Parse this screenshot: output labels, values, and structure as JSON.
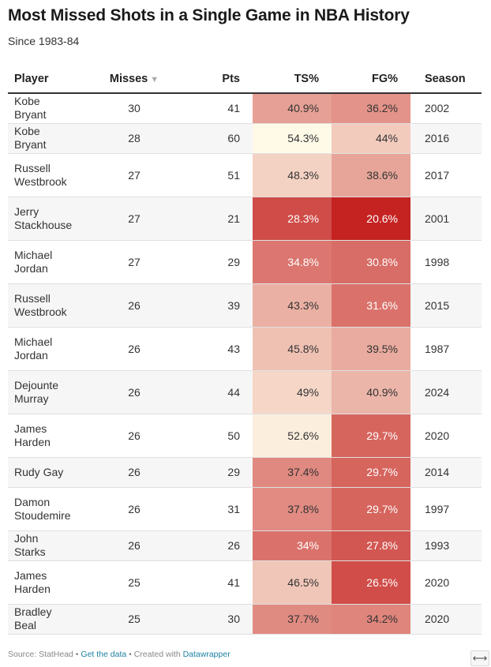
{
  "title": "Most Missed Shots in a Single Game in NBA History",
  "subtitle": "Since 1983-84",
  "columns": {
    "player": "Player",
    "misses": "Misses",
    "pts": "Pts",
    "ts": "TS%",
    "fg": "FG%",
    "season": "Season"
  },
  "sort_icon": "sort-descending-icon",
  "colors": {
    "heat_low": "#fffbe9",
    "heat_high": "#c42322",
    "header_rule": "#333333",
    "link": "#1d81a2"
  },
  "chart_data": {
    "type": "table",
    "title": "Most Missed Shots in a Single Game in NBA History",
    "subtitle": "Since 1983-84",
    "sorted_by": "Misses",
    "sort_order": "descending",
    "rows": [
      {
        "player": "Kobe Bryant",
        "misses": "30",
        "pts": "41",
        "ts": "40.9%",
        "fg": "36.2%",
        "season": "2002"
      },
      {
        "player": "Kobe Bryant",
        "misses": "28",
        "pts": "60",
        "ts": "54.3%",
        "fg": "44%",
        "season": "2016"
      },
      {
        "player": "Russell Westbrook",
        "misses": "27",
        "pts": "51",
        "ts": "48.3%",
        "fg": "38.6%",
        "season": "2017"
      },
      {
        "player": "Jerry Stackhouse",
        "misses": "27",
        "pts": "21",
        "ts": "28.3%",
        "fg": "20.6%",
        "season": "2001"
      },
      {
        "player": "Michael Jordan",
        "misses": "27",
        "pts": "29",
        "ts": "34.8%",
        "fg": "30.8%",
        "season": "1998"
      },
      {
        "player": "Russell Westbrook",
        "misses": "26",
        "pts": "39",
        "ts": "43.3%",
        "fg": "31.6%",
        "season": "2015"
      },
      {
        "player": "Michael Jordan",
        "misses": "26",
        "pts": "43",
        "ts": "45.8%",
        "fg": "39.5%",
        "season": "1987"
      },
      {
        "player": "Dejounte Murray",
        "misses": "26",
        "pts": "44",
        "ts": "49%",
        "fg": "40.9%",
        "season": "2024"
      },
      {
        "player": "James Harden",
        "misses": "26",
        "pts": "50",
        "ts": "52.6%",
        "fg": "29.7%",
        "season": "2020"
      },
      {
        "player": "Rudy Gay",
        "misses": "26",
        "pts": "29",
        "ts": "37.4%",
        "fg": "29.7%",
        "season": "2014"
      },
      {
        "player": "Damon Stoudemire",
        "misses": "26",
        "pts": "31",
        "ts": "37.8%",
        "fg": "29.7%",
        "season": "1997"
      },
      {
        "player": "John Starks",
        "misses": "26",
        "pts": "26",
        "ts": "34%",
        "fg": "27.8%",
        "season": "1993"
      },
      {
        "player": "James Harden",
        "misses": "25",
        "pts": "41",
        "ts": "46.5%",
        "fg": "26.5%",
        "season": "2020"
      },
      {
        "player": "Bradley Beal",
        "misses": "25",
        "pts": "30",
        "ts": "37.7%",
        "fg": "34.2%",
        "season": "2020"
      }
    ]
  },
  "footer": {
    "source": "Source: StatHead",
    "sep1": " • ",
    "get_data": "Get the data",
    "sep2": " • Created with ",
    "datawrapper": "Datawrapper"
  },
  "expand_icon": "expand-arrows-icon",
  "expand_glyph": "⟷"
}
